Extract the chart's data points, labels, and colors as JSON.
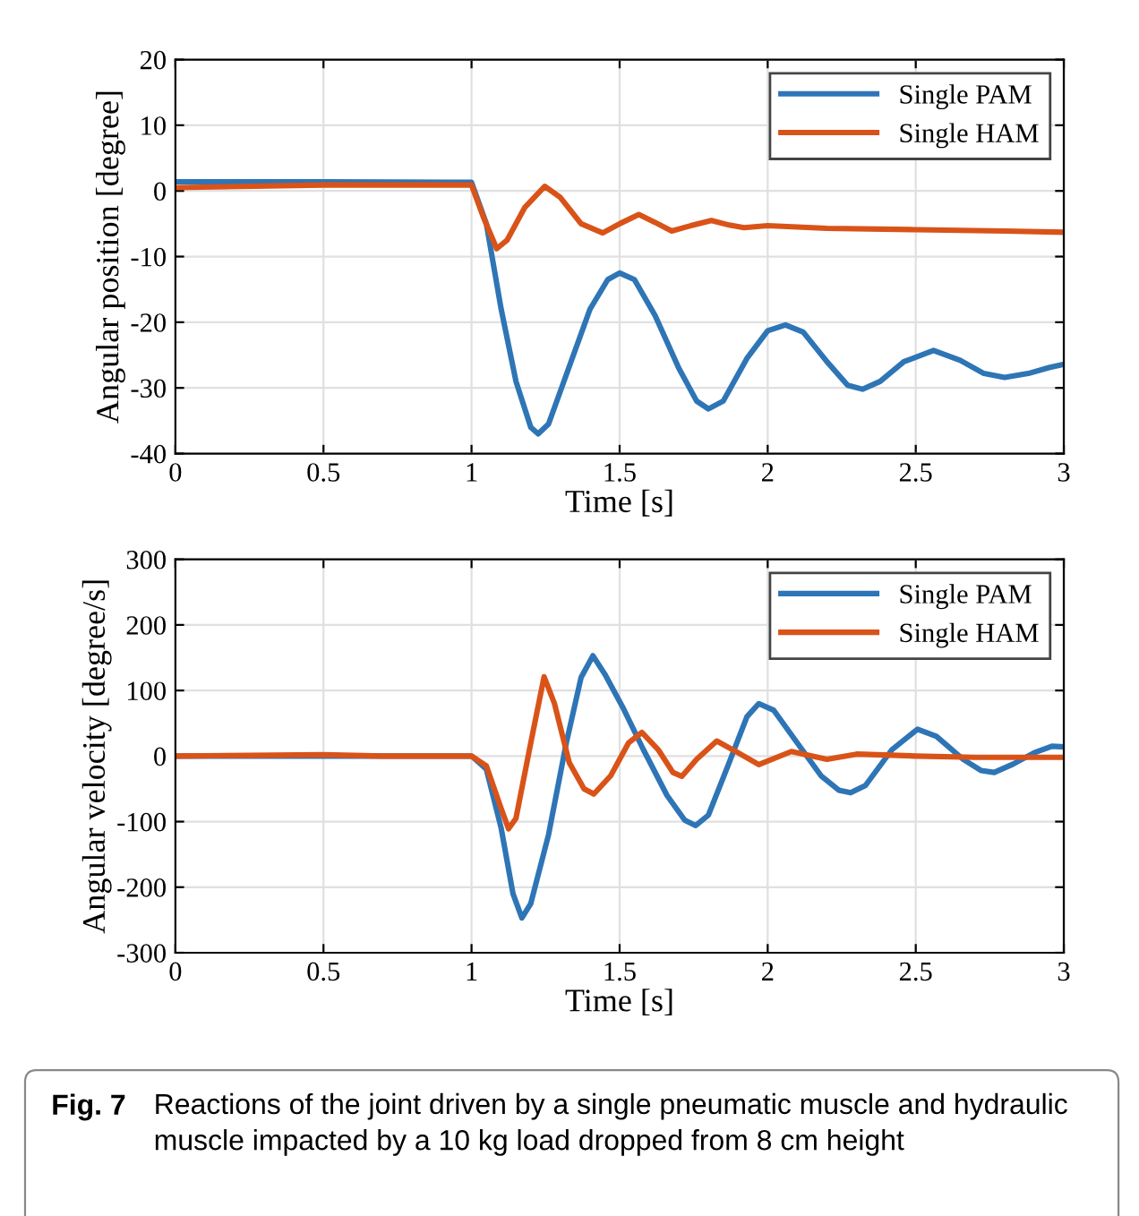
{
  "chart_data": [
    {
      "type": "line",
      "xlabel": "Time [s]",
      "ylabel": "Angular position [degree]",
      "xlim": [
        0,
        3
      ],
      "ylim": [
        -40,
        20
      ],
      "xticks": [
        0,
        0.5,
        1,
        1.5,
        2,
        2.5,
        3
      ],
      "yticks": [
        -40,
        -30,
        -20,
        -10,
        0,
        10,
        20
      ],
      "grid": true,
      "legend": "top right",
      "marker": "none",
      "line_style": "solid",
      "series": [
        {
          "name": "Single PAM",
          "color": "#2e75b6",
          "x": [
            0,
            0.5,
            1.0,
            1.05,
            1.1,
            1.15,
            1.2,
            1.225,
            1.26,
            1.32,
            1.4,
            1.46,
            1.5,
            1.55,
            1.62,
            1.7,
            1.76,
            1.8,
            1.85,
            1.93,
            2.0,
            2.06,
            2.12,
            2.2,
            2.27,
            2.32,
            2.38,
            2.46,
            2.56,
            2.65,
            2.73,
            2.8,
            2.88,
            2.95,
            3.0
          ],
          "values": [
            1.4,
            1.4,
            1.3,
            -5,
            -18,
            -29,
            -36,
            -37,
            -35.5,
            -28,
            -18,
            -13.5,
            -12.5,
            -13.5,
            -19,
            -27,
            -32,
            -33.2,
            -32,
            -25.5,
            -21.3,
            -20.4,
            -21.5,
            -26,
            -29.6,
            -30.2,
            -29,
            -26,
            -24.3,
            -25.8,
            -27.8,
            -28.4,
            -27.8,
            -26.9,
            -26.4
          ]
        },
        {
          "name": "Single HAM",
          "color": "#d95319",
          "x": [
            0,
            0.5,
            1.0,
            1.04,
            1.085,
            1.12,
            1.18,
            1.247,
            1.3,
            1.37,
            1.443,
            1.5,
            1.565,
            1.62,
            1.676,
            1.74,
            1.81,
            1.87,
            1.92,
            2.0,
            2.2,
            2.5,
            2.8,
            3.0
          ],
          "values": [
            0.5,
            0.9,
            0.9,
            -4,
            -8.8,
            -7.5,
            -2.5,
            0.7,
            -1,
            -5,
            -6.4,
            -5,
            -3.6,
            -4.8,
            -6.1,
            -5.3,
            -4.5,
            -5.2,
            -5.6,
            -5.3,
            -5.7,
            -5.9,
            -6.1,
            -6.3
          ]
        }
      ]
    },
    {
      "type": "line",
      "xlabel": "Time [s]",
      "ylabel": "Angular velocity [degree/s]",
      "xlim": [
        0,
        3
      ],
      "ylim": [
        -300,
        300
      ],
      "xticks": [
        0,
        0.5,
        1,
        1.5,
        2,
        2.5,
        3
      ],
      "yticks": [
        -300,
        -200,
        -100,
        0,
        100,
        200,
        300
      ],
      "grid": true,
      "legend": "top right",
      "marker": "none",
      "line_style": "solid",
      "annotations": [
        "Fig. 7",
        "Reactions of the joint driven by a single pneumatic muscle and hydraulic muscle impacted by a 10 kg load dropped from 8 cm height"
      ],
      "series": [
        {
          "name": "Single PAM",
          "color": "#2e75b6",
          "x": [
            0,
            0.5,
            1.0,
            1.05,
            1.1,
            1.14,
            1.17,
            1.2,
            1.26,
            1.32,
            1.37,
            1.41,
            1.45,
            1.51,
            1.58,
            1.66,
            1.72,
            1.757,
            1.8,
            1.87,
            1.93,
            1.97,
            2.02,
            2.1,
            2.18,
            2.24,
            2.28,
            2.33,
            2.42,
            2.506,
            2.57,
            2.66,
            2.72,
            2.765,
            2.83,
            2.9,
            2.96,
            3.0
          ],
          "values": [
            0,
            0,
            0,
            -20,
            -110,
            -210,
            -247,
            -225,
            -120,
            20,
            120,
            153,
            125,
            75,
            10,
            -60,
            -98,
            -106,
            -90,
            -10,
            60,
            80,
            70,
            20,
            -30,
            -52,
            -56,
            -45,
            10,
            41,
            30,
            -5,
            -22,
            -25,
            -12,
            5,
            15,
            14
          ]
        },
        {
          "name": "Single HAM",
          "color": "#d95319",
          "x": [
            0,
            0.5,
            0.7,
            1.0,
            1.05,
            1.1,
            1.125,
            1.15,
            1.2,
            1.245,
            1.28,
            1.33,
            1.38,
            1.413,
            1.47,
            1.53,
            1.575,
            1.63,
            1.68,
            1.71,
            1.76,
            1.828,
            1.9,
            1.97,
            2.08,
            2.2,
            2.3,
            2.5,
            2.7,
            3.0
          ],
          "values": [
            0,
            2,
            0,
            0,
            -15,
            -80,
            -111,
            -95,
            20,
            121,
            80,
            -10,
            -50,
            -58,
            -30,
            20,
            36,
            10,
            -25,
            -31,
            -5,
            23,
            5,
            -13,
            7,
            -5,
            3,
            0,
            -2,
            -2
          ]
        }
      ]
    }
  ]
}
